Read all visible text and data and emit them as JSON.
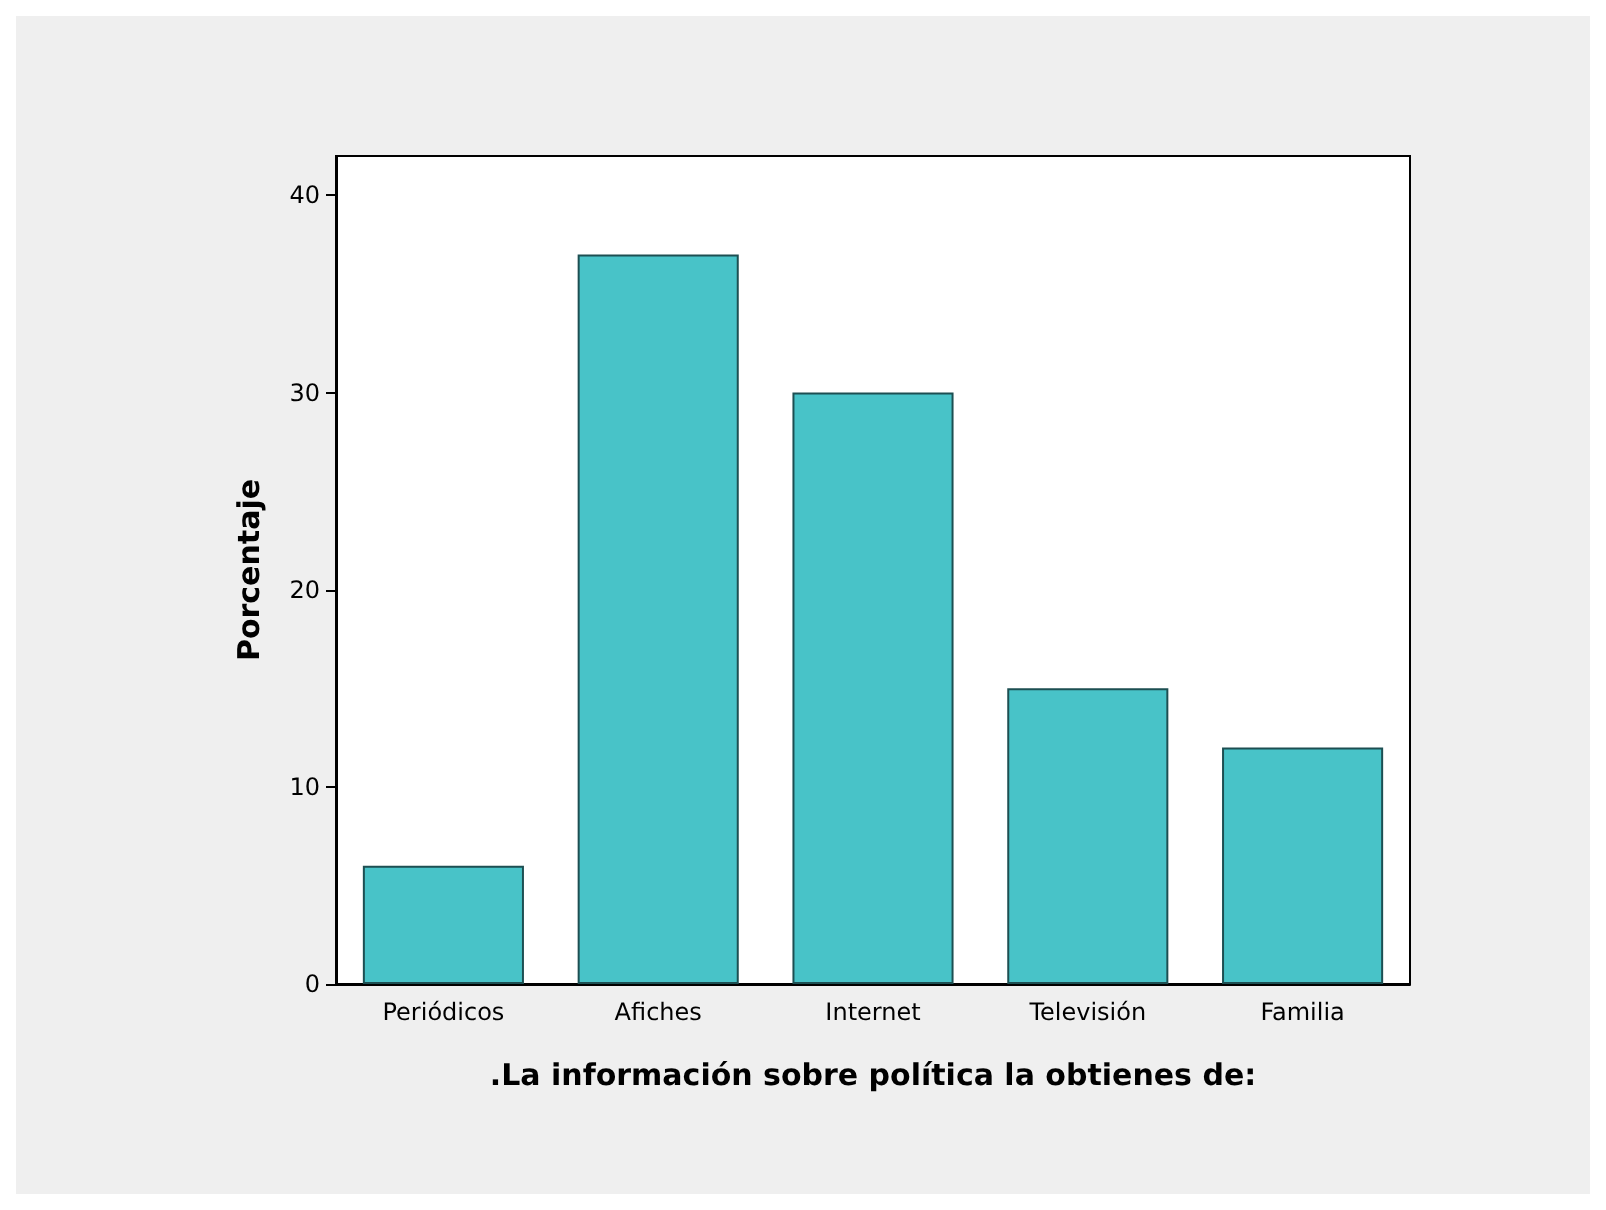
{
  "chart_data": {
    "type": "bar",
    "xlabel": ".La información sobre política la obtienes de:",
    "ylabel": "Porcentaje",
    "categories": [
      "Periódicos",
      "Afiches",
      "Internet",
      "Televisión",
      "Familia"
    ],
    "values": [
      6,
      37,
      30,
      15,
      12
    ],
    "color": "#48c3c8",
    "ylim": [
      0,
      42
    ],
    "yticks": [
      0,
      10,
      20,
      30,
      40
    ],
    "grid": false
  }
}
